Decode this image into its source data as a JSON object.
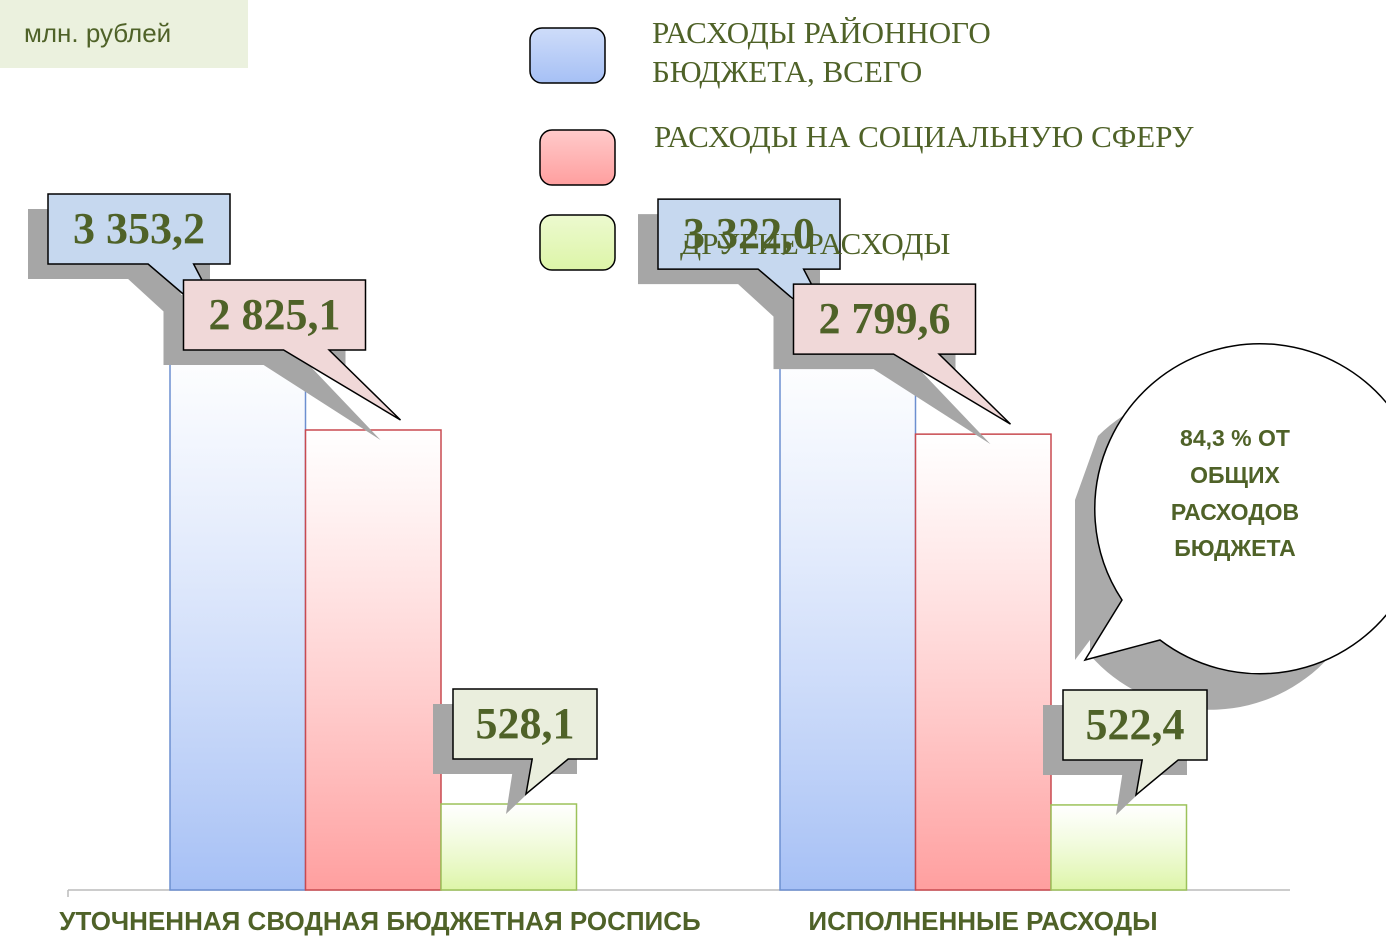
{
  "chart_data": {
    "type": "bar",
    "unit_label": "млн. рублей",
    "categories": [
      "УТОЧНЕННАЯ СВОДНАЯ БЮДЖЕТНАЯ РОСПИСЬ",
      "ИСПОЛНЕННЫЕ РАСХОДЫ"
    ],
    "series": [
      {
        "name": "РАСХОДЫ РАЙОННОГО БЮДЖЕТА, ВСЕГО",
        "color": "#a6c0f5",
        "values": [
          3353.2,
          3322.0
        ],
        "value_labels": [
          "3 353,2",
          "3 322,0"
        ]
      },
      {
        "name": "РАСХОДЫ НА СОЦИАЛЬНУЮ СФЕРУ",
        "color": "#ff9f9f",
        "values": [
          2825.1,
          2799.6
        ],
        "value_labels": [
          "2 825,1",
          "2 799,6"
        ]
      },
      {
        "name": "ДРУГИЕ РАСХОДЫ",
        "color": "#ddf5a8",
        "values": [
          528.1,
          522.4
        ],
        "value_labels": [
          "528,1",
          "522,4"
        ]
      }
    ],
    "annotation": "84,3 % ОТ ОБЩИХ РАСХОДОВ БЮДЖЕТА",
    "legend": "top-right"
  }
}
